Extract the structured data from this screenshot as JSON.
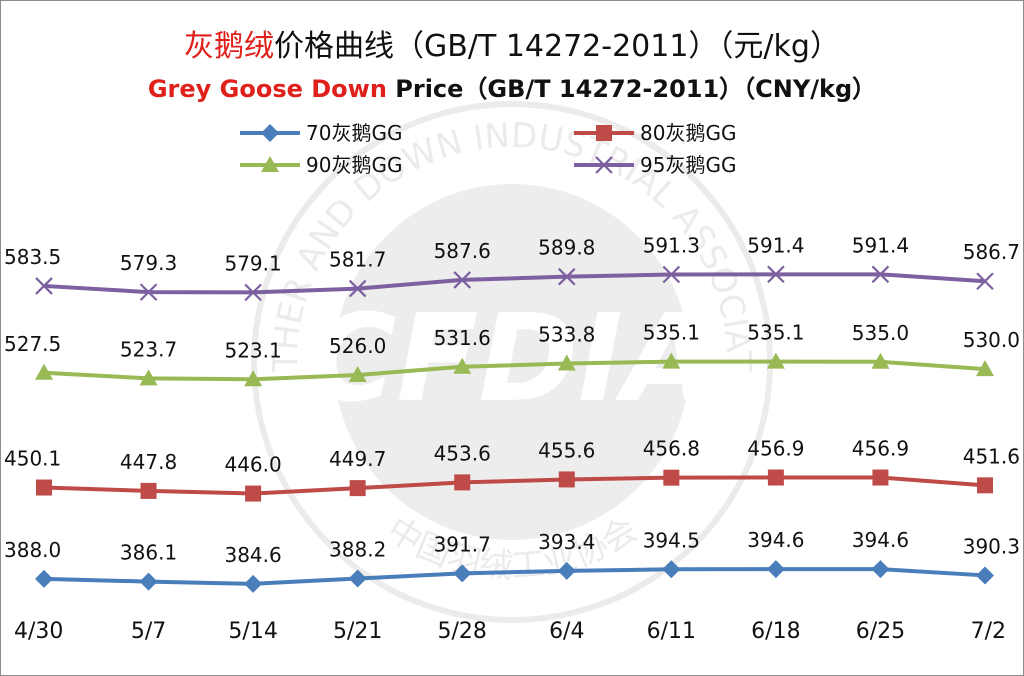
{
  "chart_data": {
    "type": "line",
    "title_parts": [
      {
        "text": "灰鹅绒",
        "color": "#e0201b"
      },
      {
        "text": "价格曲线（GB/T 14272-2011）（元/kg）",
        "color": "#111111"
      }
    ],
    "subtitle_parts": [
      {
        "text": "Grey Goose Down",
        "color": "#e0201b"
      },
      {
        "text": " Price（GB/T 14272-2011）（CNY/kg）",
        "color": "#111111"
      }
    ],
    "categories": [
      "4/30",
      "5/7",
      "5/14",
      "5/21",
      "5/28",
      "6/4",
      "6/11",
      "6/18",
      "6/25",
      "7/2"
    ],
    "series": [
      {
        "name": "70灰鹅GG",
        "color": "#4a7ebb",
        "marker": "diamond",
        "values": [
          388.0,
          386.1,
          384.6,
          388.2,
          391.7,
          393.4,
          394.5,
          394.6,
          394.6,
          390.3
        ]
      },
      {
        "name": "80灰鹅GG",
        "color": "#be4b48",
        "marker": "square",
        "values": [
          450.1,
          447.8,
          446.0,
          449.7,
          453.6,
          455.6,
          456.8,
          456.9,
          456.9,
          451.6
        ]
      },
      {
        "name": "90灰鹅GG",
        "color": "#98b954",
        "marker": "triangle",
        "values": [
          527.5,
          523.7,
          523.1,
          526.0,
          531.6,
          533.8,
          535.1,
          535.1,
          535.0,
          530.0
        ]
      },
      {
        "name": "95灰鹅GG",
        "color": "#7d60a0",
        "marker": "x",
        "values": [
          583.5,
          579.3,
          579.1,
          581.7,
          587.6,
          589.8,
          591.3,
          591.4,
          591.4,
          586.7
        ]
      }
    ],
    "label_format": "one-decimal",
    "legend_position": "top",
    "grid": false,
    "watermark_text": [
      "CFDIA",
      "FEATHER AND DOWN INDUSTRIAL ASSOCIATION",
      "中国羽绒工业协会"
    ]
  }
}
